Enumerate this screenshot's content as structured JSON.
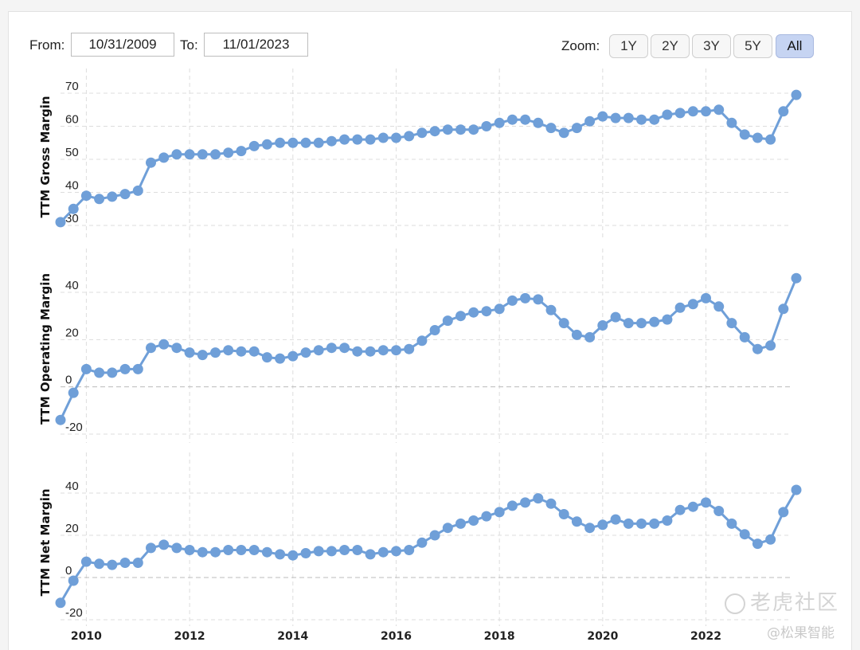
{
  "controls": {
    "from_label": "From:",
    "from_value": "10/31/2009",
    "to_label": "To:",
    "to_value": "11/01/2023",
    "zoom_label": "Zoom:",
    "zoom_options": [
      "1Y",
      "2Y",
      "3Y",
      "5Y",
      "All"
    ],
    "zoom_selected": "All"
  },
  "watermark": {
    "brand": "老虎社区",
    "handle": "@松果智能"
  },
  "colors": {
    "series": "#6f9fd8",
    "grid": "#dddddd",
    "zero_line": "#bbbbbb"
  },
  "chart_data": [
    {
      "type": "line",
      "ylabel": "TTM Gross Margin",
      "ylim": [
        30,
        70
      ],
      "yticks": [
        30,
        40,
        50,
        60,
        70
      ],
      "x": [
        2009.5,
        2009.75,
        2010.0,
        2010.25,
        2010.5,
        2010.75,
        2011.0,
        2011.25,
        2011.5,
        2011.75,
        2012.0,
        2012.25,
        2012.5,
        2012.75,
        2013.0,
        2013.25,
        2013.5,
        2013.75,
        2014.0,
        2014.25,
        2014.5,
        2014.75,
        2015.0,
        2015.25,
        2015.5,
        2015.75,
        2016.0,
        2016.25,
        2016.5,
        2016.75,
        2017.0,
        2017.25,
        2017.5,
        2017.75,
        2018.0,
        2018.25,
        2018.5,
        2018.75,
        2019.0,
        2019.25,
        2019.5,
        2019.75,
        2020.0,
        2020.25,
        2020.5,
        2020.75,
        2021.0,
        2021.25,
        2021.5,
        2021.75,
        2022.0,
        2022.25,
        2022.5,
        2022.75,
        2023.0,
        2023.25,
        2023.5,
        2023.75
      ],
      "values": [
        31,
        35,
        39,
        38,
        38.7,
        39.5,
        40.5,
        49,
        50.5,
        51.5,
        51.5,
        51.5,
        51.5,
        52,
        52.5,
        54,
        54.5,
        55,
        55,
        55,
        55,
        55.5,
        56,
        56,
        56,
        56.5,
        56.5,
        57,
        58,
        58.5,
        59,
        59,
        59,
        60,
        61,
        62,
        62,
        61,
        59.5,
        58,
        59.5,
        61.5,
        63,
        62.5,
        62.5,
        62,
        62,
        63.5,
        64,
        64.5,
        64.5,
        65,
        61,
        57.5,
        56.5,
        56,
        64.5,
        69.5
      ]
    },
    {
      "type": "line",
      "ylabel": "TTM Operating Margin",
      "ylim": [
        -20,
        40
      ],
      "yticks": [
        -20,
        0,
        20,
        40
      ],
      "x": [
        2009.5,
        2009.75,
        2010.0,
        2010.25,
        2010.5,
        2010.75,
        2011.0,
        2011.25,
        2011.5,
        2011.75,
        2012.0,
        2012.25,
        2012.5,
        2012.75,
        2013.0,
        2013.25,
        2013.5,
        2013.75,
        2014.0,
        2014.25,
        2014.5,
        2014.75,
        2015.0,
        2015.25,
        2015.5,
        2015.75,
        2016.0,
        2016.25,
        2016.5,
        2016.75,
        2017.0,
        2017.25,
        2017.5,
        2017.75,
        2018.0,
        2018.25,
        2018.5,
        2018.75,
        2019.0,
        2019.25,
        2019.5,
        2019.75,
        2020.0,
        2020.25,
        2020.5,
        2020.75,
        2021.0,
        2021.25,
        2021.5,
        2021.75,
        2022.0,
        2022.25,
        2022.5,
        2022.75,
        2023.0,
        2023.25,
        2023.5,
        2023.75
      ],
      "values": [
        -14,
        -2.5,
        7.5,
        6,
        6,
        7.5,
        7.5,
        16.5,
        18,
        16.5,
        14.5,
        13.5,
        14.5,
        15.5,
        15,
        15,
        12.5,
        12,
        13,
        14.5,
        15.5,
        16.5,
        16.5,
        15,
        15,
        15.5,
        15.5,
        16,
        19.5,
        24,
        28,
        30,
        31.5,
        32,
        33,
        36.5,
        37.5,
        37,
        32.5,
        27,
        22,
        21,
        26,
        29.5,
        27,
        27,
        27.5,
        28.5,
        33.5,
        35,
        37.5,
        34,
        27,
        21,
        16,
        17.5,
        33,
        46
      ]
    },
    {
      "type": "line",
      "ylabel": "TTM Net Margin",
      "ylim": [
        -20,
        40
      ],
      "yticks": [
        -20,
        0,
        20,
        40
      ],
      "x": [
        2009.5,
        2009.75,
        2010.0,
        2010.25,
        2010.5,
        2010.75,
        2011.0,
        2011.25,
        2011.5,
        2011.75,
        2012.0,
        2012.25,
        2012.5,
        2012.75,
        2013.0,
        2013.25,
        2013.5,
        2013.75,
        2014.0,
        2014.25,
        2014.5,
        2014.75,
        2015.0,
        2015.25,
        2015.5,
        2015.75,
        2016.0,
        2016.25,
        2016.5,
        2016.75,
        2017.0,
        2017.25,
        2017.5,
        2017.75,
        2018.0,
        2018.25,
        2018.5,
        2018.75,
        2019.0,
        2019.25,
        2019.5,
        2019.75,
        2020.0,
        2020.25,
        2020.5,
        2020.75,
        2021.0,
        2021.25,
        2021.5,
        2021.75,
        2022.0,
        2022.25,
        2022.5,
        2022.75,
        2023.0,
        2023.25,
        2023.5,
        2023.75
      ],
      "values": [
        -12,
        -1.5,
        7.5,
        6.5,
        6,
        7,
        7,
        14,
        15.5,
        14,
        13,
        12,
        12,
        13,
        13,
        13,
        12,
        11,
        10.5,
        11.5,
        12.5,
        12.5,
        13,
        13,
        11,
        12,
        12.5,
        13,
        16.5,
        20,
        23.5,
        25.5,
        27,
        29,
        31,
        34,
        35.5,
        37.5,
        35,
        30,
        26.5,
        23.5,
        25,
        27.5,
        25.5,
        25.5,
        25.5,
        27,
        32,
        33.5,
        35.5,
        31.5,
        25.5,
        20.5,
        16,
        18,
        31,
        41.5
      ]
    }
  ],
  "x_axis": {
    "ticks": [
      2010,
      2012,
      2014,
      2016,
      2018,
      2020,
      2022
    ],
    "tick_labels": [
      "2010",
      "2012",
      "2014",
      "2016",
      "2018",
      "2020",
      "2022"
    ]
  }
}
